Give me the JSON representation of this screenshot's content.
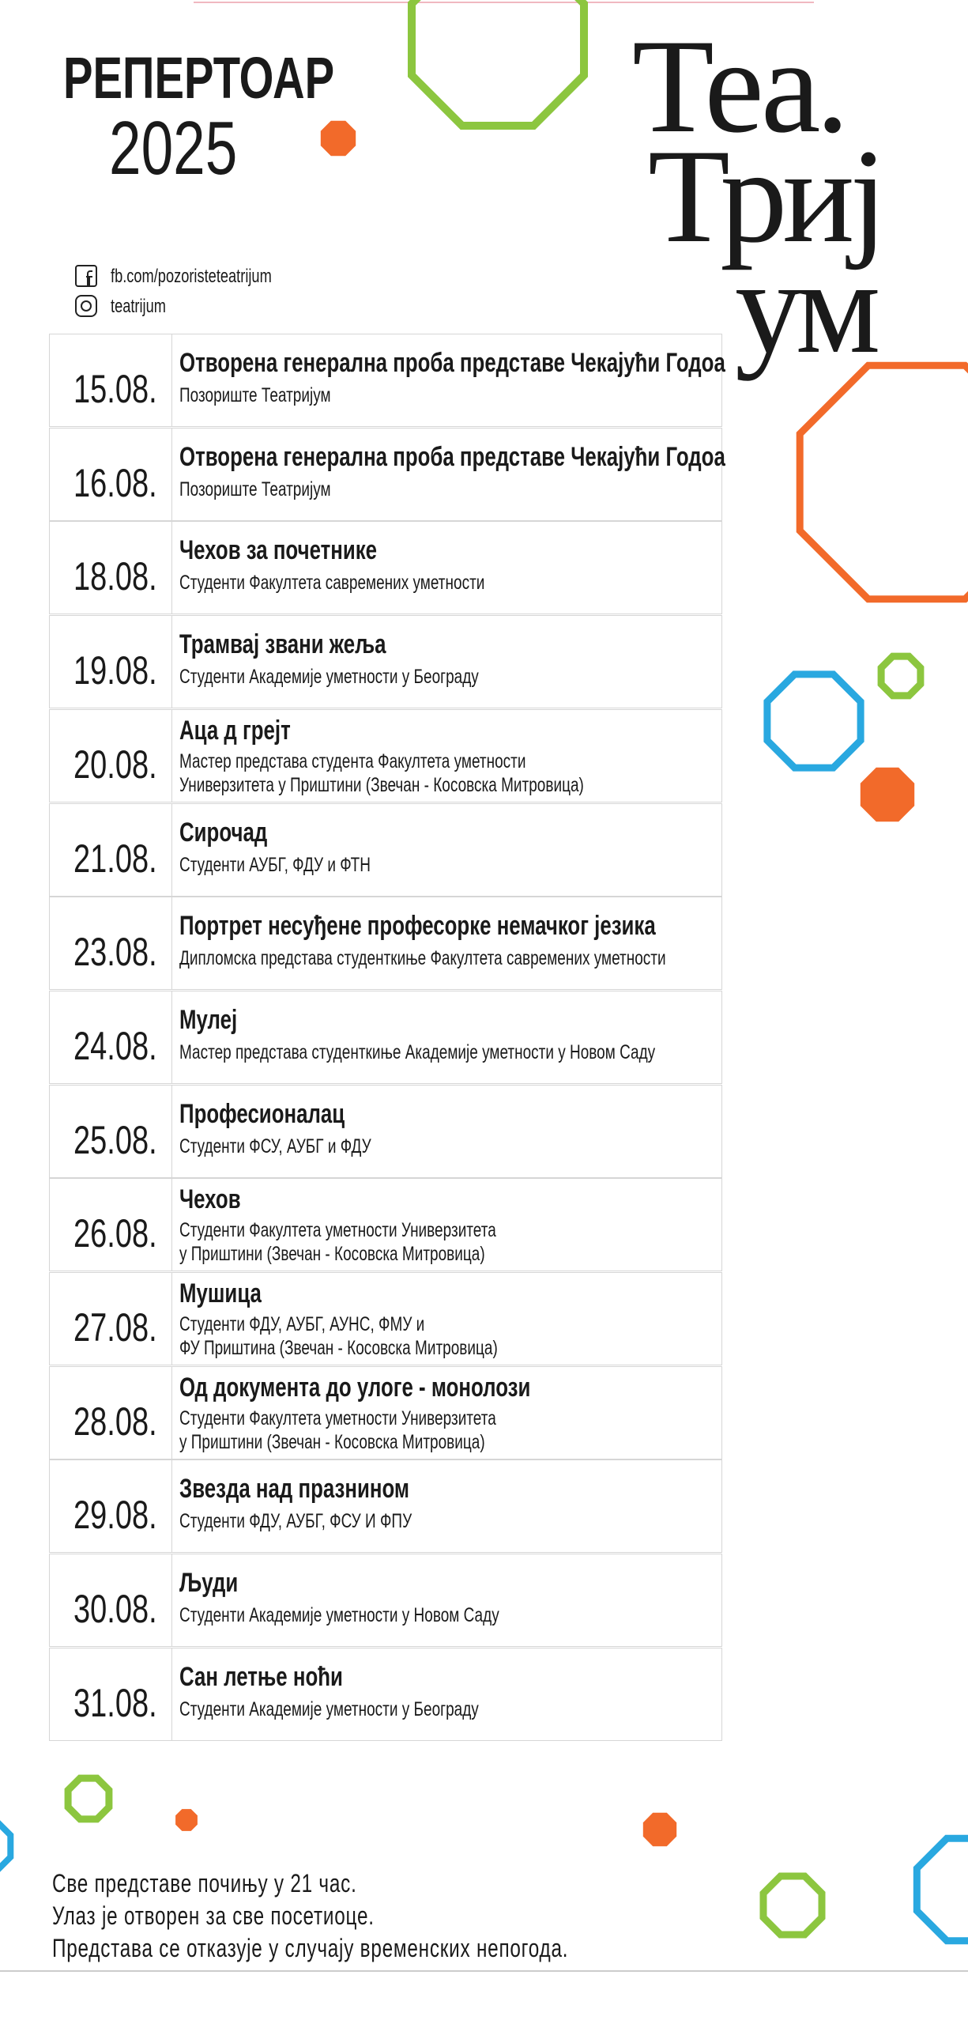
{
  "header": {
    "title": "РЕПЕРТОАР",
    "year": "2025",
    "logo": [
      "Теа.",
      "Триј",
      "ум"
    ]
  },
  "social": {
    "facebook": "fb.com/pozoristeteatrijum",
    "instagram": "teatrijum"
  },
  "table": {
    "rows": [
      {
        "date": "15.08.",
        "title": "Отворена генерална проба представе Чекајући Годоа",
        "subtitle": [
          "Позориште Театријум"
        ]
      },
      {
        "date": "16.08.",
        "title": "Отворена генерална проба представе Чекајући Годоа",
        "subtitle": [
          "Позориште Театријум"
        ]
      },
      {
        "date": "18.08.",
        "title": "Чехов за почетнике",
        "subtitle": [
          "Студенти Факултета савремених уметности"
        ]
      },
      {
        "date": "19.08.",
        "title": "Трамвај звани жеља",
        "subtitle": [
          "Студенти Академије уметности у Београду"
        ]
      },
      {
        "date": "20.08.",
        "title": "Аца д грејт",
        "subtitle": [
          "Мастер представа студента Факултета уметности",
          "Универзитета у Приштини (Звечан - Косовска Митровица)"
        ]
      },
      {
        "date": "21.08.",
        "title": "Сирочад",
        "subtitle": [
          "Студенти АУБГ, ФДУ и ФТН"
        ]
      },
      {
        "date": "23.08.",
        "title": "Портрет несуђене професорке немачког језика",
        "subtitle": [
          "Дипломска представа студенткиње Факултета савремених уметности"
        ]
      },
      {
        "date": "24.08.",
        "title": "Мулеј",
        "subtitle": [
          "Мастер представа студенткиње Академије уметности у Новом Саду"
        ]
      },
      {
        "date": "25.08.",
        "title": "Професионалац",
        "subtitle": [
          "Студенти ФСУ, АУБГ и ФДУ"
        ]
      },
      {
        "date": "26.08.",
        "title": "Чехов",
        "subtitle": [
          "Студенти Факултета уметности Универзитета",
          "у Приштини (Звечан - Косовска Митровица)"
        ]
      },
      {
        "date": "27.08.",
        "title": "Мушица",
        "subtitle": [
          "Студенти ФДУ, АУБГ, АУНС, ФМУ и",
          "ФУ Приштина (Звечан - Косовска Митровица)"
        ]
      },
      {
        "date": "28.08.",
        "title": "Од документа до улоге - монолози",
        "subtitle": [
          "Студенти Факултета уметности Универзитета",
          "у Приштини (Звечан - Косовска Митровица)"
        ]
      },
      {
        "date": "29.08.",
        "title": "Звезда над празнином",
        "subtitle": [
          "Студенти ФДУ, АУБГ, ФСУ И ФПУ"
        ]
      },
      {
        "date": "30.08.",
        "title": "Људи",
        "subtitle": [
          "Студенти Академије уметности у Новом Саду"
        ]
      },
      {
        "date": "31.08.",
        "title": "Сан летње ноћи",
        "subtitle": [
          "Студенти Академије уметности у Београду"
        ]
      }
    ]
  },
  "footer": [
    "Све представе почињу у 21 час.",
    "Улаз је отворен за све посетиоце.",
    "Представа се отказује у случају временских непогода."
  ]
}
